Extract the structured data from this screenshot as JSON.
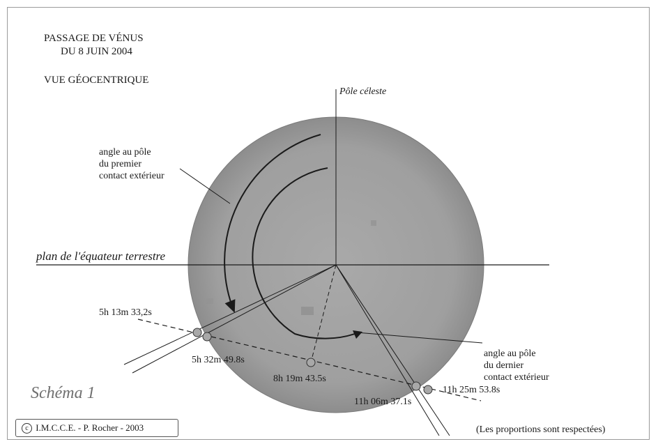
{
  "title_line1": "PASSAGE DE VÉNUS",
  "title_line2": "DU 8 JUIN  2004",
  "subtitle": "VUE GÉOCENTRIQUE",
  "pole_label": "Pôle céleste",
  "equator_label": "plan de l'équateur terrestre",
  "first_contact_label": [
    "angle au pôle",
    "du premier",
    "contact extérieur"
  ],
  "last_contact_label": [
    "angle au pôle",
    "du dernier",
    "contact extérieur"
  ],
  "times": {
    "t1": "5h 13m 33,2s",
    "t2": "5h 32m 49.8s",
    "t3": "8h 19m 43.5s",
    "t4": "11h 06m 37.1s",
    "t5": "11h 25m 53.8s"
  },
  "scheme_label": "Schéma 1",
  "copyright_symbol": "c",
  "copyright_text": "I.M.C.C.E. -  P. Rocher - 2003",
  "proportions_note": "(Les proportions sont respectées)",
  "colors": {
    "sun_disc": "#9c9c9c",
    "venus": "#a8a8a8",
    "ink": "#1a1a1a"
  }
}
